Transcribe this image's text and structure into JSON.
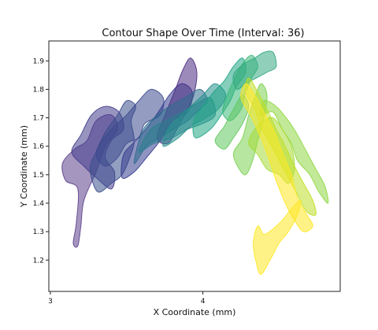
{
  "chart_data": {
    "type": "area",
    "title": "Contour Shape Over Time (Interval: 36)",
    "xlabel": "X Coordinate (mm)",
    "ylabel": "Y Coordinate (mm)",
    "xlim": [
      2.99,
      4.9
    ],
    "ylim": [
      1.09,
      1.97
    ],
    "xticks": [
      3,
      4
    ],
    "yticks": [
      1.2,
      1.3,
      1.4,
      1.5,
      1.6,
      1.7,
      1.8,
      1.9
    ],
    "grid": false,
    "colormap": [
      "#440154",
      "#3b528b",
      "#21918c",
      "#5ec962",
      "#fde725"
    ],
    "fill_opacity": 0.55,
    "series": [
      {
        "color": "#5b3f8c",
        "points": [
          [
            3.15,
            1.26
          ],
          [
            3.17,
            1.33
          ],
          [
            3.18,
            1.45
          ],
          [
            3.1,
            1.48
          ],
          [
            3.08,
            1.54
          ],
          [
            3.16,
            1.59
          ],
          [
            3.24,
            1.62
          ],
          [
            3.3,
            1.69
          ],
          [
            3.4,
            1.71
          ],
          [
            3.44,
            1.66
          ],
          [
            3.36,
            1.6
          ],
          [
            3.3,
            1.51
          ],
          [
            3.22,
            1.41
          ],
          [
            3.2,
            1.32
          ],
          [
            3.18,
            1.25
          ]
        ]
      },
      {
        "color": "#433d8c",
        "points": [
          [
            3.22,
            1.53
          ],
          [
            3.3,
            1.49
          ],
          [
            3.4,
            1.45
          ],
          [
            3.42,
            1.51
          ],
          [
            3.36,
            1.56
          ],
          [
            3.4,
            1.62
          ],
          [
            3.48,
            1.66
          ],
          [
            3.45,
            1.72
          ],
          [
            3.36,
            1.74
          ],
          [
            3.27,
            1.71
          ],
          [
            3.2,
            1.64
          ],
          [
            3.14,
            1.58
          ]
        ]
      },
      {
        "color": "#3a4f8d",
        "points": [
          [
            3.31,
            1.44
          ],
          [
            3.4,
            1.47
          ],
          [
            3.47,
            1.5
          ],
          [
            3.52,
            1.56
          ],
          [
            3.55,
            1.62
          ],
          [
            3.53,
            1.69
          ],
          [
            3.56,
            1.74
          ],
          [
            3.5,
            1.76
          ],
          [
            3.44,
            1.71
          ],
          [
            3.36,
            1.65
          ],
          [
            3.3,
            1.58
          ],
          [
            3.26,
            1.52
          ]
        ]
      },
      {
        "color": "#3d4a8e",
        "points": [
          [
            3.36,
            1.53
          ],
          [
            3.44,
            1.56
          ],
          [
            3.5,
            1.61
          ],
          [
            3.58,
            1.63
          ],
          [
            3.62,
            1.68
          ],
          [
            3.72,
            1.71
          ],
          [
            3.74,
            1.77
          ],
          [
            3.66,
            1.8
          ],
          [
            3.58,
            1.76
          ],
          [
            3.5,
            1.71
          ],
          [
            3.42,
            1.67
          ],
          [
            3.34,
            1.62
          ],
          [
            3.3,
            1.57
          ]
        ]
      },
      {
        "color": "#353c8e",
        "points": [
          [
            3.47,
            1.49
          ],
          [
            3.55,
            1.51
          ],
          [
            3.63,
            1.56
          ],
          [
            3.72,
            1.62
          ],
          [
            3.8,
            1.69
          ],
          [
            3.9,
            1.72
          ],
          [
            3.93,
            1.79
          ],
          [
            3.86,
            1.82
          ],
          [
            3.78,
            1.78
          ],
          [
            3.72,
            1.73
          ],
          [
            3.64,
            1.67
          ],
          [
            3.56,
            1.62
          ],
          [
            3.48,
            1.57
          ]
        ]
      },
      {
        "color": "#4a2b82",
        "points": [
          [
            3.7,
            1.63
          ],
          [
            3.76,
            1.72
          ],
          [
            3.82,
            1.8
          ],
          [
            3.87,
            1.87
          ],
          [
            3.92,
            1.91
          ],
          [
            3.96,
            1.86
          ],
          [
            3.94,
            1.78
          ],
          [
            3.89,
            1.72
          ],
          [
            3.83,
            1.66
          ],
          [
            3.77,
            1.61
          ]
        ]
      },
      {
        "color": "#2f6c8e",
        "points": [
          [
            3.55,
            1.54
          ],
          [
            3.63,
            1.6
          ],
          [
            3.72,
            1.63
          ],
          [
            3.81,
            1.66
          ],
          [
            3.9,
            1.69
          ],
          [
            3.98,
            1.73
          ],
          [
            4.03,
            1.76
          ],
          [
            3.98,
            1.8
          ],
          [
            3.88,
            1.77
          ],
          [
            3.78,
            1.74
          ],
          [
            3.68,
            1.7
          ],
          [
            3.6,
            1.65
          ]
        ]
      },
      {
        "color": "#2c7e8e",
        "points": [
          [
            3.58,
            1.58
          ],
          [
            3.68,
            1.61
          ],
          [
            3.8,
            1.63
          ],
          [
            3.9,
            1.66
          ],
          [
            4.0,
            1.68
          ],
          [
            4.08,
            1.71
          ],
          [
            4.05,
            1.77
          ],
          [
            3.96,
            1.75
          ],
          [
            3.86,
            1.72
          ],
          [
            3.76,
            1.69
          ],
          [
            3.66,
            1.66
          ]
        ]
      },
      {
        "color": "#24908c",
        "points": [
          [
            3.74,
            1.6
          ],
          [
            3.84,
            1.63
          ],
          [
            3.92,
            1.67
          ],
          [
            4.02,
            1.7
          ],
          [
            4.1,
            1.73
          ],
          [
            4.15,
            1.78
          ],
          [
            4.08,
            1.82
          ],
          [
            4.0,
            1.78
          ],
          [
            3.92,
            1.74
          ],
          [
            3.84,
            1.7
          ],
          [
            3.77,
            1.66
          ]
        ]
      },
      {
        "color": "#21a585",
        "points": [
          [
            3.95,
            1.63
          ],
          [
            4.05,
            1.66
          ],
          [
            4.12,
            1.71
          ],
          [
            4.18,
            1.76
          ],
          [
            4.22,
            1.81
          ],
          [
            4.28,
            1.86
          ],
          [
            4.26,
            1.91
          ],
          [
            4.2,
            1.88
          ],
          [
            4.14,
            1.83
          ],
          [
            4.07,
            1.79
          ],
          [
            4.0,
            1.74
          ],
          [
            3.94,
            1.69
          ]
        ]
      },
      {
        "color": "#3bb979",
        "points": [
          [
            4.18,
            1.69
          ],
          [
            4.25,
            1.73
          ],
          [
            4.28,
            1.79
          ],
          [
            4.32,
            1.84
          ],
          [
            4.36,
            1.88
          ],
          [
            4.32,
            1.92
          ],
          [
            4.26,
            1.89
          ],
          [
            4.21,
            1.84
          ],
          [
            4.16,
            1.78
          ],
          [
            4.13,
            1.72
          ]
        ]
      },
      {
        "color": "#34a982",
        "points": [
          [
            4.2,
            1.85
          ],
          [
            4.27,
            1.89
          ],
          [
            4.34,
            1.91
          ],
          [
            4.4,
            1.93
          ],
          [
            4.46,
            1.93
          ],
          [
            4.48,
            1.88
          ],
          [
            4.42,
            1.86
          ],
          [
            4.35,
            1.84
          ],
          [
            4.28,
            1.82
          ],
          [
            4.22,
            1.8
          ]
        ]
      },
      {
        "color": "#60c85f",
        "points": [
          [
            4.08,
            1.62
          ],
          [
            4.14,
            1.67
          ],
          [
            4.2,
            1.73
          ],
          [
            4.26,
            1.78
          ],
          [
            4.3,
            1.74
          ],
          [
            4.26,
            1.68
          ],
          [
            4.2,
            1.63
          ],
          [
            4.14,
            1.59
          ]
        ]
      },
      {
        "color": "#7ad151",
        "points": [
          [
            4.2,
            1.57
          ],
          [
            4.26,
            1.63
          ],
          [
            4.3,
            1.71
          ],
          [
            4.34,
            1.77
          ],
          [
            4.38,
            1.82
          ],
          [
            4.42,
            1.78
          ],
          [
            4.4,
            1.7
          ],
          [
            4.36,
            1.62
          ],
          [
            4.32,
            1.54
          ],
          [
            4.27,
            1.5
          ]
        ]
      },
      {
        "color": "#8fd744",
        "points": [
          [
            4.38,
            1.71
          ],
          [
            4.46,
            1.72
          ],
          [
            4.52,
            1.66
          ],
          [
            4.58,
            1.61
          ],
          [
            4.62,
            1.55
          ],
          [
            4.7,
            1.5
          ],
          [
            4.76,
            1.44
          ],
          [
            4.82,
            1.4
          ],
          [
            4.8,
            1.46
          ],
          [
            4.74,
            1.52
          ],
          [
            4.68,
            1.58
          ],
          [
            4.62,
            1.64
          ],
          [
            4.56,
            1.69
          ],
          [
            4.48,
            1.74
          ],
          [
            4.4,
            1.76
          ]
        ]
      },
      {
        "color": "#a5db36",
        "points": [
          [
            4.3,
            1.61
          ],
          [
            4.36,
            1.57
          ],
          [
            4.42,
            1.52
          ],
          [
            4.5,
            1.5
          ],
          [
            4.56,
            1.47
          ],
          [
            4.6,
            1.52
          ],
          [
            4.58,
            1.6
          ],
          [
            4.52,
            1.66
          ],
          [
            4.46,
            1.7
          ],
          [
            4.4,
            1.69
          ],
          [
            4.34,
            1.66
          ]
        ]
      },
      {
        "color": "#bddf26",
        "points": [
          [
            4.3,
            1.84
          ],
          [
            4.36,
            1.79
          ],
          [
            4.42,
            1.73
          ],
          [
            4.48,
            1.66
          ],
          [
            4.54,
            1.6
          ],
          [
            4.6,
            1.53
          ],
          [
            4.66,
            1.47
          ],
          [
            4.72,
            1.41
          ],
          [
            4.74,
            1.36
          ],
          [
            4.68,
            1.37
          ],
          [
            4.62,
            1.43
          ],
          [
            4.56,
            1.49
          ],
          [
            4.5,
            1.55
          ],
          [
            4.44,
            1.61
          ],
          [
            4.38,
            1.67
          ],
          [
            4.34,
            1.73
          ],
          [
            4.28,
            1.79
          ]
        ]
      },
      {
        "color": "#fde725",
        "points": [
          [
            4.28,
            1.82
          ],
          [
            4.34,
            1.78
          ],
          [
            4.4,
            1.72
          ],
          [
            4.46,
            1.66
          ],
          [
            4.52,
            1.58
          ],
          [
            4.58,
            1.5
          ],
          [
            4.62,
            1.42
          ],
          [
            4.68,
            1.36
          ],
          [
            4.72,
            1.32
          ],
          [
            4.66,
            1.3
          ],
          [
            4.6,
            1.34
          ],
          [
            4.54,
            1.4
          ],
          [
            4.48,
            1.48
          ],
          [
            4.43,
            1.56
          ],
          [
            4.38,
            1.63
          ],
          [
            4.32,
            1.7
          ],
          [
            4.25,
            1.77
          ]
        ]
      },
      {
        "color": "#fde725",
        "points": [
          [
            4.38,
            1.15
          ],
          [
            4.44,
            1.2
          ],
          [
            4.5,
            1.26
          ],
          [
            4.56,
            1.3
          ],
          [
            4.62,
            1.36
          ],
          [
            4.64,
            1.41
          ],
          [
            4.58,
            1.38
          ],
          [
            4.52,
            1.34
          ],
          [
            4.46,
            1.31
          ],
          [
            4.4,
            1.29
          ],
          [
            4.36,
            1.32
          ],
          [
            4.33,
            1.26
          ],
          [
            4.35,
            1.19
          ]
        ]
      }
    ]
  }
}
